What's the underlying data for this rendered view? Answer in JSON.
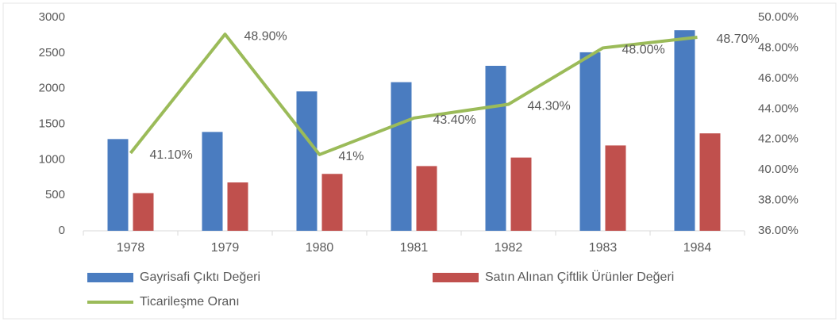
{
  "chart_data": {
    "type": "bar",
    "categories": [
      "1978",
      "1979",
      "1980",
      "1981",
      "1982",
      "1983",
      "1984"
    ],
    "series": [
      {
        "name": "Gayrisafi Çıktı Değeri",
        "color": "#4a7cc0",
        "values": [
          1290,
          1390,
          1960,
          2090,
          2320,
          2510,
          2820
        ]
      },
      {
        "name": "Satın Alınan Çiftlik Ürünler Değeri",
        "color": "#c0504d",
        "values": [
          530,
          680,
          800,
          910,
          1030,
          1200,
          1370
        ]
      },
      {
        "name": "Ticarileşme Oranı",
        "type": "line",
        "axis": "y2",
        "color": "#9bbb59",
        "values": [
          41.1,
          48.9,
          41,
          43.4,
          44.3,
          48.0,
          48.7
        ],
        "value_labels": [
          "41.10%",
          "48.90%",
          "41%",
          "43.40%",
          "44.30%",
          "48.00%",
          "48.70%"
        ]
      }
    ],
    "ylim": [
      0,
      3000
    ],
    "yticks": [
      0,
      500,
      1000,
      1500,
      2000,
      2500,
      3000
    ],
    "y2lim": [
      36,
      50
    ],
    "y2ticks": [
      {
        "value": 36,
        "label": "36.00%"
      },
      {
        "value": 38,
        "label": "38.00%"
      },
      {
        "value": 40,
        "label": "40.00%"
      },
      {
        "value": 42,
        "label": "42.00%"
      },
      {
        "value": 44,
        "label": "44.00%"
      },
      {
        "value": 46,
        "label": "46.00%"
      },
      {
        "value": 48,
        "label": "48.00%"
      },
      {
        "value": 50,
        "label": "50.00%"
      }
    ],
    "legend": "bottom"
  }
}
